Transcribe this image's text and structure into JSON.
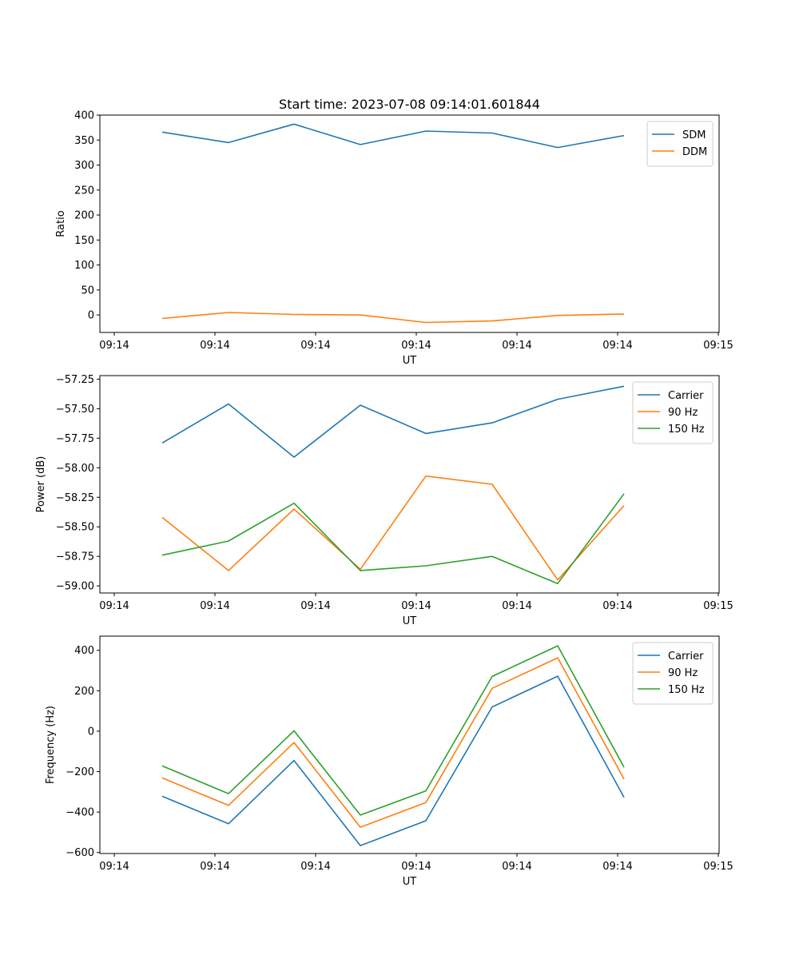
{
  "chart_data": [
    {
      "type": "line",
      "title": "Start time: 2023-07-08 09:14:01.601844",
      "xlabel": "UT",
      "ylabel": "Ratio",
      "x_tick_labels": [
        "09:14",
        "09:14",
        "09:14",
        "09:14",
        "09:14",
        "09:14",
        "09:14"
      ],
      "x_tick_last_label": "09:15",
      "ylim": [
        -35,
        400
      ],
      "yticks": [
        0,
        50,
        100,
        150,
        200,
        250,
        300,
        350,
        400
      ],
      "legend_position": "top-right",
      "series": [
        {
          "name": "SDM",
          "color": "#1f77b4",
          "values": [
            366,
            345,
            382,
            341,
            368,
            364,
            335,
            359
          ]
        },
        {
          "name": "DDM",
          "color": "#ff7f0e",
          "values": [
            -7,
            5,
            1,
            0,
            -15,
            -12,
            -1,
            2
          ]
        }
      ]
    },
    {
      "type": "line",
      "title": "",
      "xlabel": "UT",
      "ylabel": "Power (dB)",
      "x_tick_labels": [
        "09:14",
        "09:14",
        "09:14",
        "09:14",
        "09:14",
        "09:14",
        "09:14"
      ],
      "x_tick_last_label": "09:15",
      "ylim": [
        -59.06,
        -57.22
      ],
      "yticks": [
        -59.0,
        -58.75,
        -58.5,
        -58.25,
        -58.0,
        -57.75,
        -57.5,
        -57.25
      ],
      "legend_position": "top-right",
      "series": [
        {
          "name": "Carrier",
          "color": "#1f77b4",
          "values": [
            -57.79,
            -57.46,
            -57.91,
            -57.47,
            -57.71,
            -57.62,
            -57.42,
            -57.31
          ]
        },
        {
          "name": "90 Hz",
          "color": "#ff7f0e",
          "values": [
            -58.42,
            -58.87,
            -58.35,
            -58.86,
            -58.07,
            -58.14,
            -58.95,
            -58.32
          ]
        },
        {
          "name": "150 Hz",
          "color": "#2ca02c",
          "values": [
            -58.74,
            -58.62,
            -58.3,
            -58.87,
            -58.83,
            -58.75,
            -58.98,
            -58.22
          ]
        }
      ]
    },
    {
      "type": "line",
      "title": "",
      "xlabel": "UT",
      "ylabel": "Frequency (Hz)",
      "x_tick_labels": [
        "09:14",
        "09:14",
        "09:14",
        "09:14",
        "09:14",
        "09:14",
        "09:14"
      ],
      "x_tick_last_label": "09:15",
      "ylim": [
        -605,
        470
      ],
      "yticks": [
        -600,
        -400,
        -200,
        0,
        200,
        400
      ],
      "legend_position": "top-right",
      "series": [
        {
          "name": "Carrier",
          "color": "#1f77b4",
          "values": [
            -322,
            -458,
            -145,
            -566,
            -443,
            120,
            272,
            -327
          ]
        },
        {
          "name": "90 Hz",
          "color": "#ff7f0e",
          "values": [
            -231,
            -367,
            -56,
            -475,
            -353,
            212,
            363,
            -237
          ]
        },
        {
          "name": "150 Hz",
          "color": "#2ca02c",
          "values": [
            -172,
            -309,
            2,
            -415,
            -295,
            271,
            422,
            -178
          ]
        }
      ]
    }
  ]
}
